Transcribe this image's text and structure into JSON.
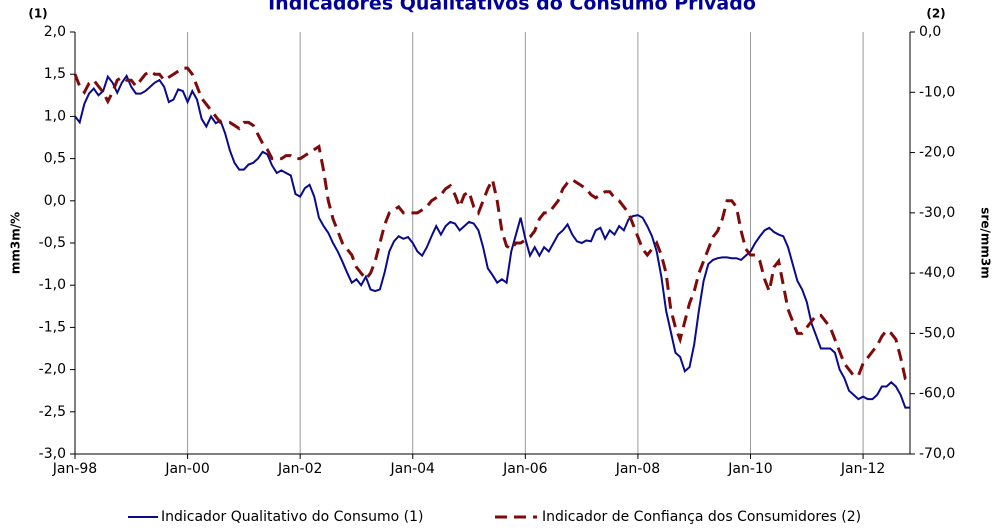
{
  "chart_data": {
    "type": "line",
    "title": "Indicadores Qualitativos do Consumo Privado",
    "annotations": [
      "(1)",
      "(2)"
    ],
    "y_label": "mm3m/%",
    "y2_label": "sre/mm3m",
    "categories": [
      "Jan-98",
      null,
      null,
      null,
      null,
      null,
      null,
      null,
      null,
      null,
      null,
      null,
      null,
      null,
      null,
      null,
      null,
      null,
      null,
      null,
      null,
      null,
      null,
      null,
      "Jan-00",
      null,
      null,
      null,
      null,
      null,
      null,
      null,
      null,
      null,
      null,
      null,
      null,
      null,
      null,
      null,
      null,
      null,
      null,
      null,
      null,
      null,
      null,
      null,
      "Jan-02",
      null,
      null,
      null,
      null,
      null,
      null,
      null,
      null,
      null,
      null,
      null,
      null,
      null,
      null,
      null,
      null,
      null,
      null,
      null,
      null,
      null,
      null,
      null,
      "Jan-04",
      null,
      null,
      null,
      null,
      null,
      null,
      null,
      null,
      null,
      null,
      null,
      null,
      null,
      null,
      null,
      null,
      null,
      null,
      null,
      null,
      null,
      null,
      null,
      "Jan-06",
      null,
      null,
      null,
      null,
      null,
      null,
      null,
      null,
      null,
      null,
      null,
      null,
      null,
      null,
      null,
      null,
      null,
      null,
      null,
      null,
      null,
      null,
      null,
      "Jan-08",
      null,
      null,
      null,
      null,
      null,
      null,
      null,
      null,
      null,
      null,
      null,
      null,
      null,
      null,
      null,
      null,
      null,
      null,
      null,
      null,
      null,
      null,
      null,
      "Jan-10",
      null,
      null,
      null,
      null,
      null,
      null,
      null,
      null,
      null,
      null,
      null,
      null,
      null,
      null,
      null,
      null,
      null,
      null,
      null,
      null,
      null,
      null,
      null,
      "Jan-12",
      null,
      null,
      null,
      null,
      null,
      null,
      null,
      null,
      null,
      null
    ],
    "series": [
      {
        "name": "Indicador Qualitativo do Consumo (1)",
        "color": "#0a0a8c",
        "dash": false,
        "values": [
          1.0,
          0.93,
          1.15,
          1.27,
          1.33,
          1.25,
          1.3,
          1.47,
          1.4,
          1.28,
          1.4,
          1.48,
          1.35,
          1.27,
          1.27,
          1.3,
          1.35,
          1.4,
          1.43,
          1.35,
          1.17,
          1.2,
          1.32,
          1.3,
          1.17,
          1.3,
          1.2,
          0.97,
          0.88,
          1.0,
          0.92,
          0.95,
          0.8,
          0.6,
          0.45,
          0.37,
          0.37,
          0.43,
          0.45,
          0.5,
          0.58,
          0.55,
          0.42,
          0.33,
          0.36,
          0.33,
          0.3,
          0.08,
          0.05,
          0.15,
          0.19,
          0.05,
          -0.2,
          -0.3,
          -0.38,
          -0.5,
          -0.6,
          -0.72,
          -0.85,
          -0.97,
          -0.93,
          -1.0,
          -0.9,
          -1.05,
          -1.07,
          -1.05,
          -0.85,
          -0.6,
          -0.48,
          -0.42,
          -0.45,
          -0.43,
          -0.5,
          -0.6,
          -0.65,
          -0.55,
          -0.42,
          -0.3,
          -0.4,
          -0.3,
          -0.25,
          -0.27,
          -0.35,
          -0.3,
          -0.25,
          -0.27,
          -0.35,
          -0.55,
          -0.8,
          -0.88,
          -0.97,
          -0.93,
          -0.97,
          -0.6,
          -0.4,
          -0.2,
          -0.45,
          -0.65,
          -0.55,
          -0.65,
          -0.55,
          -0.6,
          -0.5,
          -0.4,
          -0.35,
          -0.28,
          -0.4,
          -0.48,
          -0.5,
          -0.47,
          -0.48,
          -0.35,
          -0.32,
          -0.45,
          -0.35,
          -0.4,
          -0.3,
          -0.35,
          -0.22,
          -0.18,
          -0.17,
          -0.2,
          -0.3,
          -0.42,
          -0.6,
          -0.9,
          -1.3,
          -1.55,
          -1.8,
          -1.85,
          -2.02,
          -1.97,
          -1.7,
          -1.3,
          -0.95,
          -0.75,
          -0.7,
          -0.68,
          -0.67,
          -0.67,
          -0.68,
          -0.68,
          -0.7,
          -0.65,
          -0.6,
          -0.5,
          -0.42,
          -0.35,
          -0.32,
          -0.37,
          -0.4,
          -0.42,
          -0.55,
          -0.75,
          -0.95,
          -1.05,
          -1.2,
          -1.45,
          -1.6,
          -1.75,
          -1.75,
          -1.75,
          -1.8,
          -2.0,
          -2.1,
          -2.25,
          -2.3,
          -2.35,
          -2.32,
          -2.35,
          -2.35,
          -2.3,
          -2.2,
          -2.2,
          -2.15,
          -2.2,
          -2.3,
          -2.45,
          -2.45
        ]
      },
      {
        "name": "Indicador de Confiança dos Consumidores (2)",
        "color": "#7f0a0a",
        "dash": true,
        "axis": "y2",
        "values": [
          -7,
          -9,
          -10,
          -8.5,
          -8,
          -9,
          -10,
          -11.5,
          -10,
          -8,
          -7.5,
          -8,
          -8,
          -9,
          -8,
          -7,
          -6.5,
          -7,
          -7,
          -8,
          -7.5,
          -7,
          -6.5,
          -6,
          -6,
          -7,
          -9,
          -11,
          -12,
          -13,
          -14,
          -15,
          -15,
          -15,
          -15.5,
          -16,
          -15,
          -15,
          -15.5,
          -17,
          -18.5,
          -19.5,
          -21,
          -21,
          -21,
          -20.5,
          -20.5,
          -21,
          -21,
          -20.5,
          -20,
          -19.5,
          -19,
          -23,
          -28,
          -31,
          -33,
          -35,
          -36,
          -37,
          -39,
          -40,
          -41,
          -40,
          -38,
          -35,
          -32,
          -30,
          -29.5,
          -29,
          -30,
          -30,
          -30,
          -30,
          -29.5,
          -29,
          -28,
          -27.5,
          -27,
          -26,
          -25.5,
          -27,
          -29,
          -27,
          -26.5,
          -29,
          -30,
          -28,
          -26,
          -24.5,
          -28,
          -33,
          -35.5,
          -36,
          -35,
          -35,
          -34.5,
          -34,
          -33,
          -31,
          -30,
          -30,
          -29,
          -28,
          -26,
          -25,
          -24.5,
          -25,
          -25.5,
          -26,
          -27,
          -27.5,
          -27,
          -26.5,
          -26.5,
          -27.5,
          -28,
          -29,
          -30,
          -32,
          -34,
          -36,
          -37,
          -36,
          -35,
          -37,
          -40,
          -46,
          -49,
          -51,
          -48,
          -45,
          -43,
          -40,
          -38,
          -36,
          -34,
          -33,
          -31,
          -28,
          -28,
          -29,
          -33,
          -36,
          -37,
          -37,
          -38,
          -41,
          -43,
          -39,
          -38,
          -42,
          -46,
          -48,
          -50,
          -50,
          -49,
          -48,
          -47,
          -47,
          -48,
          -49,
          -51,
          -53,
          -55,
          -56,
          -57,
          -57,
          -55,
          -54,
          -53,
          -52,
          -50.5,
          -49.5,
          -50,
          -51,
          -54,
          -57.5,
          -58
        ]
      }
    ],
    "ylim": [
      -3,
      2
    ],
    "yticks": [
      {
        "value": -3,
        "label": "-3,0"
      },
      {
        "value": -2.5,
        "label": "-2,5"
      },
      {
        "value": -2,
        "label": "-2,0"
      },
      {
        "value": -1.5,
        "label": "-1,5"
      },
      {
        "value": -1,
        "label": "-1,0"
      },
      {
        "value": -0.5,
        "label": "-0,5"
      },
      {
        "value": 0,
        "label": "0,0"
      },
      {
        "value": 0.5,
        "label": "0,5"
      },
      {
        "value": 1,
        "label": "1,0"
      },
      {
        "value": 1.5,
        "label": "1,5"
      },
      {
        "value": 2,
        "label": "2,0"
      }
    ],
    "y2lim": [
      -70,
      0
    ],
    "y2ticks": [
      {
        "value": -70,
        "label": "-70,0"
      },
      {
        "value": -60,
        "label": "-60,0"
      },
      {
        "value": -50,
        "label": "-50,0"
      },
      {
        "value": -40,
        "label": "-40,0"
      },
      {
        "value": -30,
        "label": "-30,0"
      },
      {
        "value": -20,
        "label": "-20,0"
      },
      {
        "value": -10,
        "label": "-10,0"
      },
      {
        "value": 0,
        "label": "0,0"
      }
    ],
    "grid": "x",
    "legend": "bottom"
  }
}
